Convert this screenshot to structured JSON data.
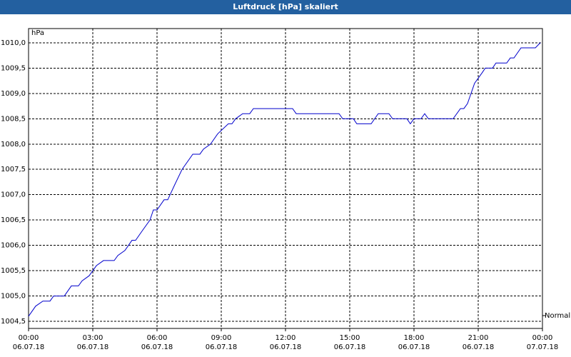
{
  "chart_data": {
    "type": "line",
    "title": "Luftdruck [hPa] skaliert",
    "y_label": "hPa",
    "annotation": "Normal",
    "grid": true,
    "xlim": [
      0,
      24
    ],
    "ylim": [
      1004.36,
      1010.28
    ],
    "xticks": [
      {
        "value": 0,
        "label": "00:00\n06.07.18"
      },
      {
        "value": 3,
        "label": "03:00\n06.07.18"
      },
      {
        "value": 6,
        "label": "06:00\n06.07.18"
      },
      {
        "value": 9,
        "label": "09:00\n06.07.18"
      },
      {
        "value": 12,
        "label": "12:00\n06.07.18"
      },
      {
        "value": 15,
        "label": "15:00\n06.07.18"
      },
      {
        "value": 18,
        "label": "18:00\n06.07.18"
      },
      {
        "value": 21,
        "label": "21:00\n06.07.18"
      },
      {
        "value": 24,
        "label": "00:00\n07.07.18"
      }
    ],
    "yticks": [
      {
        "value": 1004.5,
        "label": "1004,5"
      },
      {
        "value": 1005.0,
        "label": "1005,0"
      },
      {
        "value": 1005.5,
        "label": "1005,5"
      },
      {
        "value": 1006.0,
        "label": "1006,0"
      },
      {
        "value": 1006.5,
        "label": "1006,5"
      },
      {
        "value": 1007.0,
        "label": "1007,0"
      },
      {
        "value": 1007.5,
        "label": "1007,5"
      },
      {
        "value": 1008.0,
        "label": "1008,0"
      },
      {
        "value": 1008.5,
        "label": "1008,5"
      },
      {
        "value": 1009.0,
        "label": "1009,0"
      },
      {
        "value": 1009.5,
        "label": "1009,5"
      },
      {
        "value": 1010.0,
        "label": "1010,0"
      }
    ],
    "series": [
      {
        "color": "#0000cc",
        "x": [
          0,
          0.33,
          0.67,
          1.0,
          1.17,
          1.67,
          2.0,
          2.33,
          2.5,
          2.83,
          3.17,
          3.5,
          4.0,
          4.17,
          4.5,
          4.83,
          5.0,
          5.33,
          5.67,
          5.83,
          6.0,
          6.33,
          6.5,
          6.83,
          7.17,
          7.67,
          8.0,
          8.17,
          8.5,
          8.83,
          9.33,
          9.5,
          9.67,
          10.0,
          10.33,
          10.5,
          12.33,
          12.5,
          14.5,
          14.67,
          15.17,
          15.33,
          16.0,
          16.33,
          16.83,
          17.0,
          17.67,
          17.83,
          18.0,
          18.33,
          18.5,
          18.67,
          19.83,
          20.17,
          20.33,
          20.5,
          20.83,
          21.17,
          21.33,
          21.67,
          21.83,
          22.33,
          22.5,
          22.67,
          23.0,
          23.67,
          23.9
        ],
        "values": [
          1004.6,
          1004.8,
          1004.9,
          1004.9,
          1005.0,
          1005.0,
          1005.2,
          1005.2,
          1005.3,
          1005.4,
          1005.6,
          1005.7,
          1005.7,
          1005.8,
          1005.9,
          1006.1,
          1006.1,
          1006.3,
          1006.5,
          1006.7,
          1006.7,
          1006.9,
          1006.9,
          1007.2,
          1007.5,
          1007.8,
          1007.8,
          1007.9,
          1008.0,
          1008.2,
          1008.4,
          1008.4,
          1008.5,
          1008.6,
          1008.6,
          1008.7,
          1008.7,
          1008.6,
          1008.6,
          1008.5,
          1008.5,
          1008.4,
          1008.4,
          1008.6,
          1008.6,
          1008.5,
          1008.5,
          1008.4,
          1008.5,
          1008.5,
          1008.6,
          1008.5,
          1008.5,
          1008.7,
          1008.7,
          1008.8,
          1009.2,
          1009.4,
          1009.5,
          1009.5,
          1009.6,
          1009.6,
          1009.7,
          1009.7,
          1009.9,
          1009.9,
          1010.0
        ]
      }
    ]
  }
}
